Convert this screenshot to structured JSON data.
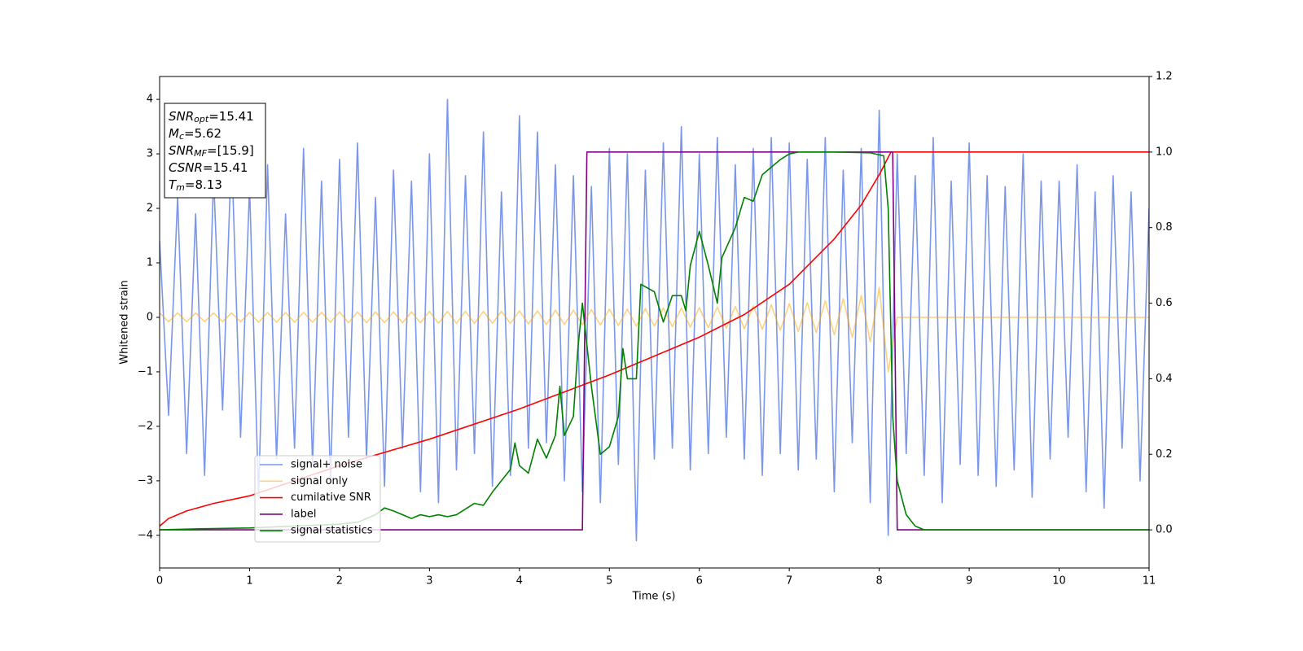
{
  "chart_data": {
    "type": "line",
    "xlabel": "Time (s)",
    "ylabel": "Whitened strain",
    "xlim": [
      0,
      11
    ],
    "xticks": [
      0,
      1,
      2,
      3,
      4,
      5,
      6,
      7,
      8,
      9,
      10,
      11
    ],
    "ylim": [
      -4.6,
      4.42
    ],
    "yticks": [
      {
        "value": -4,
        "label": "−4"
      },
      {
        "value": -3,
        "label": "−3"
      },
      {
        "value": -2,
        "label": "−2"
      },
      {
        "value": -1,
        "label": "−1"
      },
      0,
      1,
      2,
      3,
      4
    ],
    "y2lim": [
      -0.101,
      1.2
    ],
    "y2ticks": [
      {
        "value": 0,
        "label": "0.0"
      },
      0.2,
      0.4,
      0.6,
      0.8,
      {
        "value": 1,
        "label": "1.0"
      },
      1.2
    ],
    "grid": false,
    "x": [
      0,
      0.1,
      0.2,
      0.3,
      0.4,
      0.5,
      0.6,
      0.7,
      0.8,
      0.9,
      1,
      1.1,
      1.2,
      1.3,
      1.4,
      1.5,
      1.6,
      1.7,
      1.8,
      1.9,
      2,
      2.1,
      2.2,
      2.3,
      2.4,
      2.5,
      2.6,
      2.7,
      2.8,
      2.9,
      3,
      3.1,
      3.2,
      3.3,
      3.4,
      3.5,
      3.6,
      3.7,
      3.8,
      3.9,
      4,
      4.1,
      4.2,
      4.3,
      4.4,
      4.5,
      4.6,
      4.7,
      4.8,
      4.9,
      5,
      5.1,
      5.2,
      5.3,
      5.4,
      5.5,
      5.6,
      5.7,
      5.8,
      5.9,
      6,
      6.1,
      6.2,
      6.3,
      6.4,
      6.5,
      6.6,
      6.7,
      6.8,
      6.9,
      7,
      7.1,
      7.2,
      7.3,
      7.4,
      7.5,
      7.6,
      7.7,
      7.8,
      7.9,
      8,
      8.1,
      8.2,
      8.3,
      8.4,
      8.5,
      8.6,
      8.7,
      8.8,
      8.9,
      9,
      9.1,
      9.2,
      9.3,
      9.4,
      9.5,
      9.6,
      9.7,
      9.8,
      9.9,
      10,
      10.1,
      10.2,
      10.3,
      10.4,
      10.5,
      10.6,
      10.7,
      10.8,
      10.9,
      11
    ],
    "series": [
      {
        "name": "signal+ noise",
        "color": "#4169e1",
        "opacity": 0.7,
        "axis": "y",
        "values": [
          1.4,
          -1.8,
          2.2,
          -2.5,
          1.9,
          -2.9,
          2.6,
          -1.7,
          3.1,
          -2.2,
          2.4,
          -3.3,
          2.8,
          -2.6,
          1.9,
          -2.4,
          3.1,
          -2.7,
          2.5,
          -3.0,
          2.9,
          -2.2,
          3.2,
          -2.6,
          2.2,
          -3.1,
          2.7,
          -2.4,
          2.5,
          -3.2,
          3.0,
          -3.4,
          4.0,
          -2.8,
          2.6,
          -2.5,
          3.4,
          -3.1,
          2.3,
          -2.9,
          3.7,
          -2.4,
          3.4,
          -2.3,
          2.8,
          -3.0,
          2.6,
          -3.2,
          2.4,
          -3.4,
          3.1,
          -2.7,
          3.0,
          -4.1,
          2.7,
          -2.6,
          3.2,
          -2.4,
          3.5,
          -2.8,
          3.0,
          -2.5,
          3.3,
          -2.2,
          2.8,
          -2.6,
          3.1,
          -2.9,
          3.3,
          -2.5,
          3.2,
          -2.8,
          2.9,
          -2.6,
          3.3,
          -3.2,
          2.7,
          -2.3,
          3.1,
          -3.4,
          3.8,
          -4.0,
          3.0,
          -2.5,
          2.6,
          -2.9,
          3.3,
          -3.4,
          2.5,
          -2.7,
          3.2,
          -2.9,
          2.6,
          -3.1,
          2.4,
          -2.8,
          3.0,
          -3.3,
          2.5,
          -2.6,
          2.5,
          -2.2,
          2.8,
          -3.2,
          2.3,
          -3.5,
          2.6,
          -2.4,
          2.3,
          -3.0,
          2.0
        ]
      },
      {
        "name": "signal only",
        "color": "#ffa500",
        "opacity": 0.5,
        "axis": "y",
        "values": [
          0.08,
          -0.08,
          0.08,
          -0.08,
          0.08,
          -0.08,
          0.08,
          -0.08,
          0.08,
          -0.08,
          0.09,
          -0.09,
          0.09,
          -0.09,
          0.09,
          -0.09,
          0.09,
          -0.09,
          0.09,
          -0.09,
          0.1,
          -0.1,
          0.1,
          -0.1,
          0.1,
          -0.1,
          0.1,
          -0.1,
          0.1,
          -0.1,
          0.11,
          -0.11,
          0.11,
          -0.11,
          0.11,
          -0.11,
          0.11,
          -0.11,
          0.11,
          -0.11,
          0.12,
          -0.12,
          0.12,
          -0.13,
          0.13,
          -0.13,
          0.13,
          -0.14,
          0.14,
          -0.14,
          0.15,
          -0.15,
          0.15,
          -0.16,
          0.16,
          -0.16,
          0.17,
          -0.17,
          0.17,
          -0.18,
          0.18,
          -0.19,
          0.19,
          -0.2,
          0.2,
          -0.21,
          0.21,
          -0.22,
          0.23,
          -0.24,
          0.25,
          -0.26,
          0.27,
          -0.28,
          0.3,
          -0.32,
          0.34,
          -0.37,
          0.4,
          -0.45,
          0.55,
          -1.0,
          0,
          0,
          0,
          0,
          0,
          0,
          0,
          0,
          0,
          0,
          0,
          0,
          0,
          0,
          0,
          0,
          0,
          0,
          0,
          0,
          0,
          0,
          0,
          0,
          0,
          0,
          0,
          0,
          0
        ]
      },
      {
        "name": "cumilative SNR",
        "color": "#ff0000",
        "opacity": 1,
        "axis": "y2",
        "x": [
          0,
          0.1,
          0.3,
          0.6,
          1,
          2,
          3,
          4,
          5,
          6,
          6.5,
          7,
          7.5,
          7.8,
          8,
          8.13,
          11
        ],
        "values": [
          0.01,
          0.03,
          0.05,
          0.07,
          0.09,
          0.17,
          0.24,
          0.32,
          0.41,
          0.51,
          0.57,
          0.65,
          0.77,
          0.86,
          0.94,
          1.0,
          1.0
        ]
      },
      {
        "name": "label",
        "color": "#800080",
        "opacity": 1,
        "axis": "y2",
        "x": [
          0,
          4.7,
          4.75,
          8.15,
          8.2,
          11
        ],
        "values": [
          0,
          0,
          1,
          1,
          0,
          0
        ]
      },
      {
        "name": "signal statistics",
        "color": "#008000",
        "opacity": 1,
        "axis": "y2",
        "x": [
          0,
          0.5,
          1,
          1.5,
          2,
          2.2,
          2.4,
          2.5,
          2.6,
          2.7,
          2.8,
          2.9,
          3,
          3.1,
          3.2,
          3.3,
          3.4,
          3.5,
          3.6,
          3.7,
          3.8,
          3.9,
          3.95,
          4,
          4.1,
          4.2,
          4.3,
          4.4,
          4.45,
          4.5,
          4.6,
          4.65,
          4.7,
          4.8,
          4.9,
          5,
          5.1,
          5.15,
          5.2,
          5.3,
          5.35,
          5.5,
          5.6,
          5.7,
          5.8,
          5.85,
          5.9,
          6,
          6.1,
          6.2,
          6.25,
          6.4,
          6.5,
          6.6,
          6.7,
          6.9,
          7,
          7.1,
          7.5,
          7.9,
          8.05,
          8.1,
          8.15,
          8.2,
          8.3,
          8.4,
          8.5,
          11
        ],
        "values": [
          0,
          0.003,
          0.005,
          0.01,
          0.015,
          0.02,
          0.04,
          0.058,
          0.05,
          0.04,
          0.03,
          0.04,
          0.035,
          0.04,
          0.035,
          0.04,
          0.055,
          0.07,
          0.065,
          0.1,
          0.13,
          0.16,
          0.23,
          0.17,
          0.15,
          0.24,
          0.19,
          0.25,
          0.38,
          0.25,
          0.3,
          0.48,
          0.6,
          0.38,
          0.2,
          0.22,
          0.3,
          0.48,
          0.4,
          0.4,
          0.65,
          0.63,
          0.55,
          0.62,
          0.62,
          0.58,
          0.7,
          0.79,
          0.7,
          0.6,
          0.72,
          0.8,
          0.88,
          0.87,
          0.94,
          0.98,
          0.995,
          1.0,
          1.0,
          0.998,
          0.99,
          0.85,
          0.3,
          0.13,
          0.04,
          0.01,
          0,
          0
        ]
      }
    ],
    "annotation": [
      {
        "text": "SNR",
        "sub": "opt",
        "rest": "=15.41"
      },
      {
        "text": "M",
        "sub": "c",
        "rest": "=5.62"
      },
      {
        "text": "SNR",
        "sub": "MF",
        "rest": "=[15.9]"
      },
      {
        "text": "CSNR",
        "rest": "=15.41"
      },
      {
        "text": "T",
        "sub": "m",
        "rest": "=8.13"
      }
    ]
  }
}
